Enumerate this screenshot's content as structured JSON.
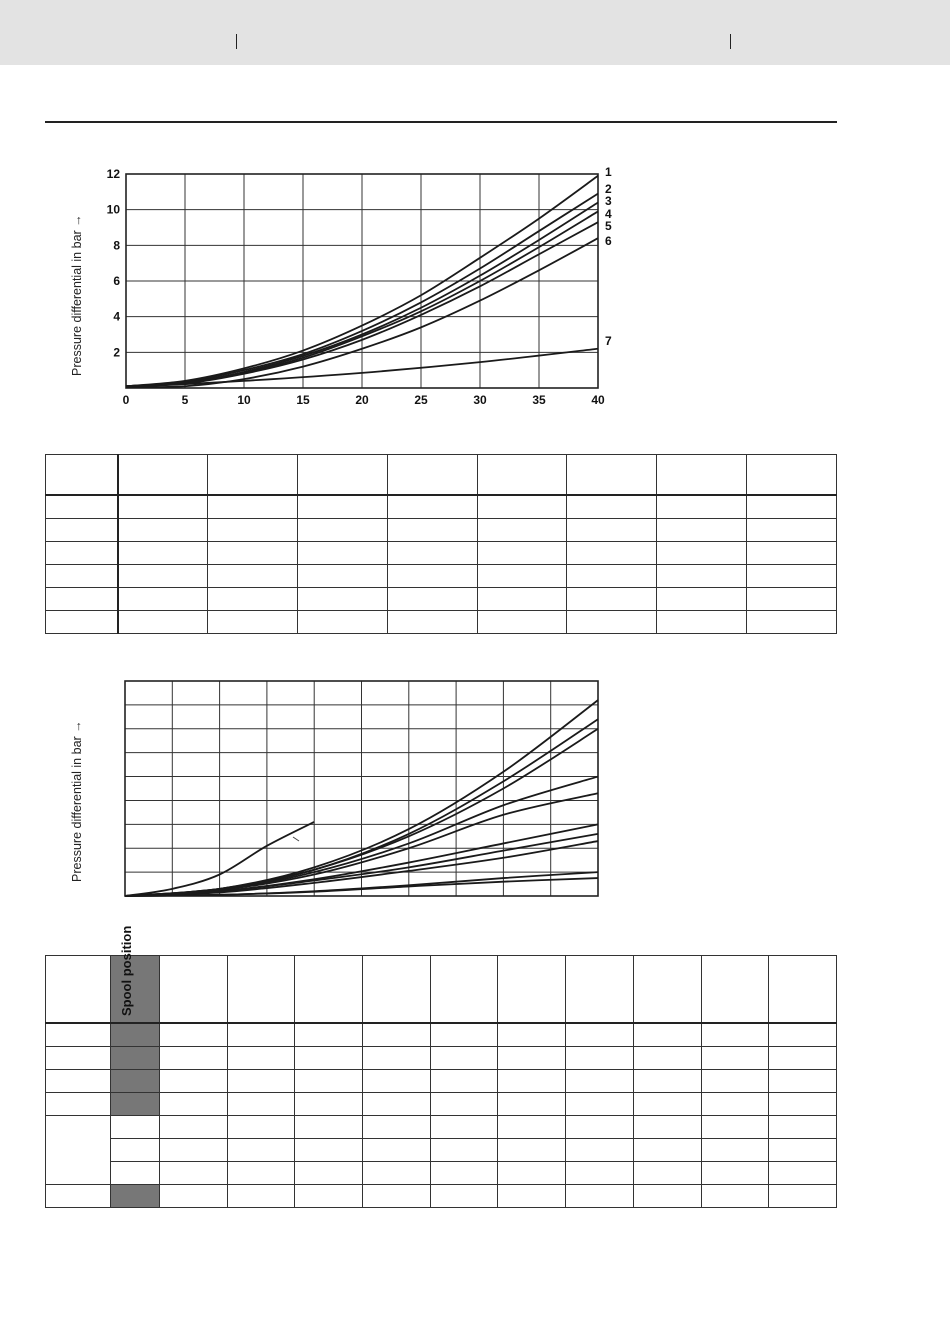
{
  "header": {},
  "chart_top": {
    "y_axis_title": "Pressure differential in bar →",
    "x_ticks": [
      "0",
      "5",
      "10",
      "15",
      "20",
      "25",
      "30",
      "35",
      "40"
    ],
    "y_ticks": [
      "2",
      "4",
      "6",
      "8",
      "10",
      "12"
    ],
    "curve_labels": [
      "1",
      "2",
      "3",
      "4",
      "5",
      "6",
      "7"
    ]
  },
  "chart_bottom": {
    "y_axis_title": "Pressure differential in bar →"
  },
  "table2": {
    "spool_header": "Spool position"
  },
  "chart_data": [
    {
      "type": "line",
      "title": "",
      "xlabel": "",
      "ylabel": "Pressure differential in bar →",
      "xlim": [
        0,
        40
      ],
      "ylim": [
        0,
        12
      ],
      "x_ticks": [
        0,
        5,
        10,
        15,
        20,
        25,
        30,
        35,
        40
      ],
      "y_ticks": [
        2,
        4,
        6,
        8,
        10,
        12
      ],
      "grid": true,
      "series": [
        {
          "name": "1",
          "x": [
            0,
            5,
            10,
            15,
            20,
            25,
            30,
            35,
            40
          ],
          "y": [
            0.1,
            0.4,
            1.1,
            2.1,
            3.5,
            5.2,
            7.3,
            9.5,
            11.9
          ]
        },
        {
          "name": "2",
          "x": [
            0,
            5,
            10,
            15,
            20,
            25,
            30,
            35,
            40
          ],
          "y": [
            0.1,
            0.35,
            1.0,
            1.9,
            3.2,
            4.8,
            6.7,
            8.8,
            10.9
          ]
        },
        {
          "name": "3",
          "x": [
            0,
            5,
            10,
            15,
            20,
            25,
            30,
            35,
            40
          ],
          "y": [
            0.1,
            0.3,
            0.9,
            1.8,
            3.0,
            4.5,
            6.3,
            8.3,
            10.4
          ]
        },
        {
          "name": "4",
          "x": [
            0,
            5,
            10,
            15,
            20,
            25,
            30,
            35,
            40
          ],
          "y": [
            0.1,
            0.3,
            0.85,
            1.7,
            2.9,
            4.3,
            6.0,
            7.9,
            9.9
          ]
        },
        {
          "name": "5",
          "x": [
            0,
            5,
            10,
            15,
            20,
            25,
            30,
            35,
            40
          ],
          "y": [
            0.1,
            0.25,
            0.8,
            1.6,
            2.7,
            4.1,
            5.7,
            7.5,
            9.3
          ]
        },
        {
          "name": "6",
          "x": [
            0,
            5,
            10,
            15,
            20,
            25,
            30,
            35,
            40
          ],
          "y": [
            0.05,
            0.1,
            0.5,
            1.2,
            2.2,
            3.4,
            4.9,
            6.6,
            8.4
          ]
        },
        {
          "name": "7",
          "x": [
            0,
            10,
            20,
            30,
            40
          ],
          "y": [
            0.05,
            0.4,
            0.85,
            1.45,
            2.2
          ]
        }
      ]
    },
    {
      "type": "line",
      "title": "",
      "xlabel": "",
      "ylabel": "Pressure differential in bar →",
      "grid": true,
      "x_divisions": 10,
      "y_divisions": 9,
      "xlim": [
        0,
        10
      ],
      "ylim": [
        0,
        9
      ],
      "series": [
        {
          "x": [
            0,
            2,
            4,
            6,
            8,
            10
          ],
          "y": [
            0,
            0.3,
            1.2,
            2.8,
            5.2,
            8.2
          ]
        },
        {
          "x": [
            0,
            2,
            4,
            6,
            8,
            10
          ],
          "y": [
            0,
            0.3,
            1.1,
            2.6,
            4.8,
            7.4
          ]
        },
        {
          "x": [
            0,
            2,
            4,
            6,
            8,
            10
          ],
          "y": [
            0,
            0.3,
            1.1,
            2.5,
            4.5,
            7.0
          ]
        },
        {
          "x": [
            0,
            2,
            4,
            6,
            8,
            10
          ],
          "y": [
            0,
            0.25,
            1.0,
            2.2,
            3.8,
            5.0
          ]
        },
        {
          "x": [
            0,
            2,
            4,
            6,
            8,
            10
          ],
          "y": [
            0,
            0.25,
            0.9,
            2.0,
            3.4,
            4.3
          ]
        },
        {
          "x": [
            0,
            2,
            4,
            6,
            8,
            10
          ],
          "y": [
            0,
            0.2,
            0.7,
            1.4,
            2.2,
            3.0
          ]
        },
        {
          "x": [
            0,
            2,
            4,
            6,
            8,
            10
          ],
          "y": [
            0,
            0.2,
            0.65,
            1.2,
            1.9,
            2.6
          ]
        },
        {
          "x": [
            0,
            2,
            4,
            6,
            8,
            10
          ],
          "y": [
            0,
            0.15,
            0.55,
            1.05,
            1.6,
            2.3
          ]
        },
        {
          "x": [
            0,
            2,
            4,
            6,
            8,
            10
          ],
          "y": [
            0,
            0.05,
            0.2,
            0.45,
            0.75,
            1.0
          ]
        },
        {
          "x": [
            0,
            2,
            4,
            6,
            8,
            10
          ],
          "y": [
            0,
            0.05,
            0.18,
            0.4,
            0.6,
            0.75
          ]
        },
        {
          "x": [
            0,
            1,
            2,
            3,
            4
          ],
          "y": [
            0,
            0.3,
            0.9,
            2.1,
            3.1
          ]
        }
      ]
    }
  ]
}
